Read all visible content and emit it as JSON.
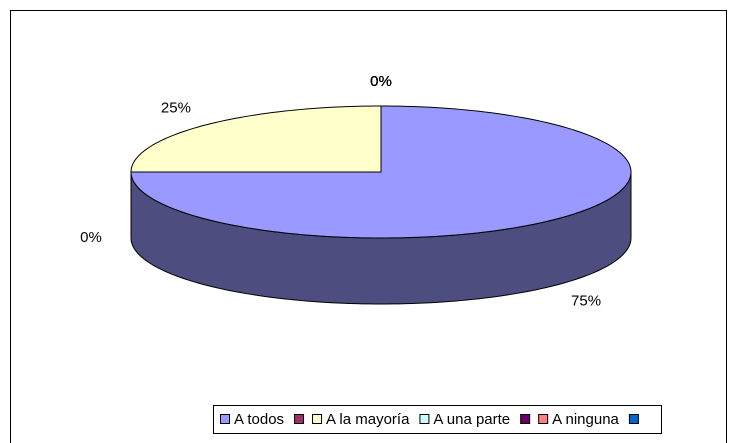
{
  "chart_data": {
    "type": "pie",
    "categories": [
      "A todos",
      null,
      "A la mayoría",
      "A una parte",
      null,
      "A ninguna",
      null
    ],
    "values": [
      75,
      0,
      25,
      0,
      0,
      0,
      0
    ],
    "value_labels": [
      "75%",
      "0%",
      "25%",
      "0%",
      "0%",
      "0%",
      "0%"
    ],
    "colors": [
      "#9999ff",
      "#993366",
      "#ffffcc",
      "#ccffff",
      "#660066",
      "#ff8080",
      "#0066cc"
    ],
    "legend": "bottom"
  }
}
